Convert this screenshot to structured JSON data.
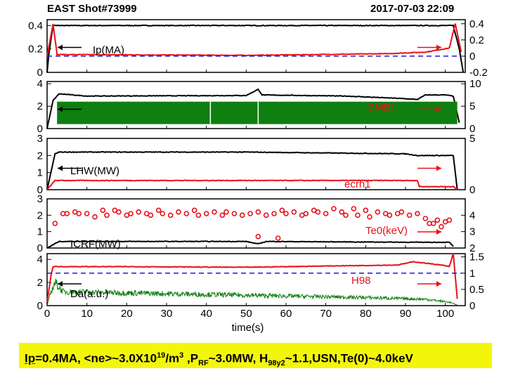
{
  "header": {
    "title": "EAST Shot#73999",
    "timestamp": "2017-07-03 22:09"
  },
  "summary": {
    "ip": "Ip",
    "ip_rest": "=0.4MA, <ne>~3.0X10",
    "ne_exp": "19",
    "ne_unit": "/m",
    "ne_unit_exp": "3",
    "prf_pre": " ,P",
    "prf_sub": "RF",
    "prf_rest": "~3.0MW, H",
    "h_sub": "98y2",
    "rest": "~1.1,USN,Te(0)~4.0keV"
  },
  "colors": {
    "black": "#000000",
    "red": "#e8101a",
    "blue": "#1a1ad8",
    "green": "#0f7f0f",
    "yellow_box": "#f4f60a"
  },
  "chart_data": [
    {
      "type": "line",
      "panel": 1,
      "left_ticks": [
        "0.4",
        "0.2",
        "0"
      ],
      "left_ylim": [
        0,
        0.45
      ],
      "right_ticks": [
        "0.4",
        "0.2",
        "0",
        "-0.2"
      ],
      "right_ylim": [
        -0.2,
        0.45
      ],
      "xlim": [
        0,
        105
      ],
      "series": [
        {
          "name": "Ip(MA)",
          "color": "black",
          "axis": "left",
          "points": [
            [
              0,
              0
            ],
            [
              0.6,
              0.2
            ],
            [
              1.5,
              0.4
            ],
            [
              102,
              0.4
            ],
            [
              103.5,
              0.2
            ],
            [
              104.5,
              0
            ]
          ]
        },
        {
          "color": "red",
          "axis": "right",
          "points": [
            [
              0,
              0
            ],
            [
              1.5,
              0.4
            ],
            [
              2.5,
              0.02
            ],
            [
              50,
              0.01
            ],
            [
              85,
              0.03
            ],
            [
              95,
              0.05
            ],
            [
              101,
              0.1
            ],
            [
              102.5,
              0.4
            ],
            [
              104,
              0.05
            ]
          ]
        },
        {
          "color": "blue",
          "axis": "right",
          "dashed": true,
          "points": [
            [
              0,
              0
            ],
            [
              104,
              0
            ]
          ]
        }
      ],
      "arrows": [
        {
          "dir": "left",
          "side": "left"
        },
        {
          "dir": "right",
          "side": "right"
        }
      ]
    },
    {
      "type": "area",
      "panel": 2,
      "left_ticks": [
        "4",
        "2",
        "0"
      ],
      "left_ylim": [
        0,
        4.2
      ],
      "right_ticks": [
        "10",
        "5",
        "0"
      ],
      "right_ylim": [
        0,
        10.5
      ],
      "xlim": [
        0,
        105
      ],
      "series": [
        {
          "color": "black",
          "axis": "left",
          "points": [
            [
              0,
              0
            ],
            [
              1.5,
              2.5
            ],
            [
              3,
              3.1
            ],
            [
              10,
              2.9
            ],
            [
              50,
              2.95
            ],
            [
              53,
              3.5
            ],
            [
              54,
              3.0
            ],
            [
              75,
              2.9
            ],
            [
              88,
              2.7
            ],
            [
              93,
              2.6
            ],
            [
              95,
              3.0
            ],
            [
              100,
              3.0
            ],
            [
              102,
              2.9
            ],
            [
              103.5,
              0.5
            ]
          ]
        },
        {
          "name": "SMBI",
          "color": "green",
          "axis": "right",
          "band": [
            2.5,
            103
          ],
          "level": [
            1,
            6
          ],
          "gaps": [
            41,
            53
          ]
        }
      ],
      "arrows": [
        {
          "dir": "left",
          "side": "left"
        },
        {
          "dir": "right",
          "side": "right"
        }
      ]
    },
    {
      "type": "line",
      "panel": 3,
      "left_ticks": [
        "3",
        "2",
        "1",
        "0"
      ],
      "left_ylim": [
        0,
        3
      ],
      "right_ticks": [
        "5",
        "0"
      ],
      "right_ylim": [
        0,
        5
      ],
      "xlim": [
        0,
        105
      ],
      "series": [
        {
          "name": "LHW(MW)",
          "color": "black",
          "axis": "left",
          "points": [
            [
              0,
              0
            ],
            [
              2,
              2.1
            ],
            [
              3,
              2.2
            ],
            [
              50,
              2.2
            ],
            [
              90,
              2.1
            ],
            [
              93,
              2.0
            ],
            [
              102,
              2.0
            ],
            [
              103,
              0
            ]
          ]
        },
        {
          "name": "ecrh1",
          "color": "red",
          "axis": "right",
          "points": [
            [
              0,
              0
            ],
            [
              2,
              0.9
            ],
            [
              93,
              0.9
            ],
            [
              93.5,
              0.3
            ],
            [
              102,
              0.3
            ],
            [
              103,
              0
            ]
          ]
        }
      ],
      "arrows": [
        {
          "dir": "left",
          "side": "left"
        },
        {
          "dir": "right",
          "side": "right"
        }
      ]
    },
    {
      "type": "scatter",
      "panel": 4,
      "left_ticks": [
        "3",
        "2",
        "1",
        "0"
      ],
      "left_ylim": [
        0,
        3
      ],
      "right_ticks": [
        "4",
        "3",
        "2"
      ],
      "right_ylim": [
        2,
        5
      ],
      "xlim": [
        0,
        105
      ],
      "series": [
        {
          "name": "ICRF(MW)",
          "color": "black",
          "axis": "left",
          "kind": "line",
          "points": [
            [
              0,
              0
            ],
            [
              1.5,
              0.2
            ],
            [
              3,
              0.4
            ],
            [
              50,
              0.4
            ],
            [
              53,
              0.25
            ],
            [
              55,
              0.4
            ],
            [
              93,
              0.35
            ],
            [
              101,
              0.35
            ],
            [
              102,
              0.1
            ]
          ]
        },
        {
          "name": "Te0(keV)",
          "color": "red",
          "axis": "right",
          "kind": "points",
          "points": [
            [
              2,
              3.5
            ],
            [
              4,
              4.1
            ],
            [
              5,
              4.1
            ],
            [
              7,
              4.2
            ],
            [
              8,
              4.1
            ],
            [
              10,
              4.1
            ],
            [
              12,
              3.9
            ],
            [
              14,
              4.3
            ],
            [
              15,
              4.0
            ],
            [
              17,
              4.3
            ],
            [
              18,
              4.2
            ],
            [
              20,
              4.0
            ],
            [
              21,
              4.1
            ],
            [
              23,
              4.2
            ],
            [
              25,
              4.1
            ],
            [
              26,
              4.0
            ],
            [
              28,
              4.3
            ],
            [
              29,
              4.1
            ],
            [
              31,
              4.0
            ],
            [
              33,
              4.2
            ],
            [
              35,
              4.1
            ],
            [
              37,
              4.3
            ],
            [
              38,
              4.0
            ],
            [
              40,
              4.1
            ],
            [
              42,
              4.2
            ],
            [
              44,
              4.0
            ],
            [
              45,
              4.2
            ],
            [
              47,
              4.1
            ],
            [
              49,
              4.0
            ],
            [
              51,
              4.1
            ],
            [
              53,
              4.2
            ],
            [
              55,
              4.0
            ],
            [
              57,
              4.1
            ],
            [
              59,
              4.3
            ],
            [
              60,
              4.1
            ],
            [
              62,
              4.2
            ],
            [
              64,
              4.0
            ],
            [
              65,
              4.1
            ],
            [
              67,
              4.3
            ],
            [
              68,
              4.2
            ],
            [
              70,
              4.1
            ],
            [
              72,
              4.4
            ],
            [
              74,
              4.2
            ],
            [
              75,
              4.0
            ],
            [
              77,
              4.4
            ],
            [
              78,
              4.0
            ],
            [
              80,
              4.3
            ],
            [
              81,
              3.9
            ],
            [
              83,
              4.2
            ],
            [
              85,
              4.1
            ],
            [
              86,
              4.0
            ],
            [
              88,
              4.1
            ],
            [
              89,
              4.2
            ],
            [
              91,
              4.0
            ],
            [
              93,
              4.1
            ],
            [
              95,
              3.8
            ],
            [
              96,
              3.5
            ],
            [
              97,
              3.5
            ],
            [
              98,
              3.7
            ],
            [
              99,
              3.3
            ],
            [
              100,
              3.6
            ],
            [
              101,
              3.7
            ],
            [
              53,
              2.7
            ],
            [
              58,
              2.6
            ]
          ]
        }
      ],
      "arrows": [
        {
          "dir": "right",
          "side": "right"
        }
      ]
    },
    {
      "type": "line",
      "panel": 5,
      "left_ticks": [
        "4",
        "2",
        "0"
      ],
      "left_ylim": [
        0,
        4.5
      ],
      "right_ticks": [
        "1.5",
        "1",
        "0.5",
        "0"
      ],
      "right_ylim": [
        0,
        1.6
      ],
      "xlim": [
        0,
        105
      ],
      "xticks": [
        "0",
        "10",
        "20",
        "30",
        "40",
        "50",
        "60",
        "70",
        "80",
        "90",
        "100"
      ],
      "xlabel": "time(s)",
      "series": [
        {
          "name": "Da(a.u.)",
          "color": "green",
          "axis": "left",
          "kind": "noisy",
          "points": [
            [
              0,
              0
            ],
            [
              1,
              1.2
            ],
            [
              2,
              2.0
            ],
            [
              4,
              1.2
            ],
            [
              20,
              1.1
            ],
            [
              50,
              0.9
            ],
            [
              80,
              0.7
            ],
            [
              95,
              0.55
            ],
            [
              101,
              0.3
            ],
            [
              103,
              0.05
            ]
          ]
        },
        {
          "name": "H98",
          "color": "red",
          "axis": "right",
          "points": [
            [
              0,
              0.1
            ],
            [
              1,
              0.95
            ],
            [
              1.5,
              1.2
            ],
            [
              20,
              1.2
            ],
            [
              50,
              1.18
            ],
            [
              70,
              1.22
            ],
            [
              88,
              1.25
            ],
            [
              92,
              1.35
            ],
            [
              99,
              1.25
            ],
            [
              101,
              1.2
            ],
            [
              102,
              1.6
            ],
            [
              103,
              0.2
            ]
          ]
        },
        {
          "color": "blue",
          "axis": "right",
          "dashed": true,
          "points": [
            [
              0,
              1.0
            ],
            [
              104,
              1.0
            ]
          ]
        }
      ],
      "arrows": [
        {
          "dir": "left",
          "side": "left"
        },
        {
          "dir": "right",
          "side": "right"
        }
      ]
    }
  ]
}
